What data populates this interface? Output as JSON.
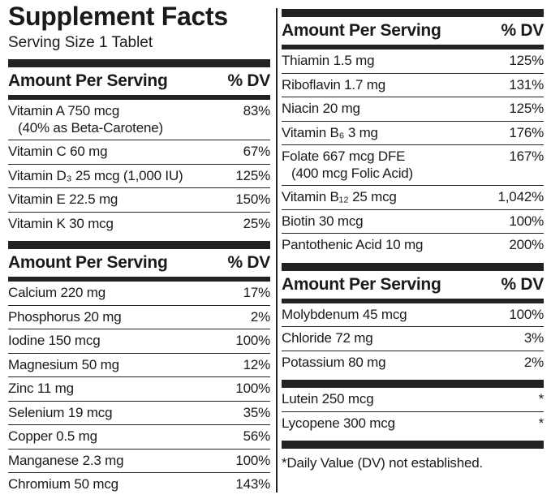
{
  "title": "Supplement Facts",
  "serving_size": "Serving Size 1 Tablet",
  "left_sections": [
    {
      "header": {
        "amount": "Amount Per Serving",
        "dv": "% DV"
      },
      "rows": [
        {
          "name": "Vitamin A 750 mcg",
          "note": "(40% as Beta-Carotene)",
          "dv": "83%"
        },
        {
          "name": "Vitamin C 60 mg",
          "dv": "67%"
        },
        {
          "name": "Vitamin D₃ 25 mcg (1,000 IU)",
          "dv": "125%"
        },
        {
          "name": "Vitamin E 22.5 mg",
          "dv": "150%"
        },
        {
          "name": "Vitamin K 30 mcg",
          "dv": "25%"
        }
      ]
    },
    {
      "header": {
        "amount": "Amount Per Serving",
        "dv": "% DV"
      },
      "rows": [
        {
          "name": "Calcium 220 mg",
          "dv": "17%"
        },
        {
          "name": "Phosphorus 20 mg",
          "dv": "2%"
        },
        {
          "name": "Iodine 150 mcg",
          "dv": "100%"
        },
        {
          "name": "Magnesium 50 mg",
          "dv": "12%"
        },
        {
          "name": "Zinc 11 mg",
          "dv": "100%"
        },
        {
          "name": "Selenium 19 mcg",
          "dv": "35%"
        },
        {
          "name": "Copper 0.5 mg",
          "dv": "56%"
        },
        {
          "name": "Manganese 2.3 mg",
          "dv": "100%"
        },
        {
          "name": "Chromium 50 mcg",
          "dv": "143%"
        }
      ]
    }
  ],
  "right_sections": [
    {
      "header": {
        "amount": "Amount Per Serving",
        "dv": "% DV"
      },
      "rows": [
        {
          "name": "Thiamin 1.5 mg",
          "dv": "125%"
        },
        {
          "name": "Riboflavin 1.7 mg",
          "dv": "131%"
        },
        {
          "name": "Niacin 20 mg",
          "dv": "125%"
        },
        {
          "name": "Vitamin B₆ 3 mg",
          "dv": "176%"
        },
        {
          "name": "Folate 667 mcg DFE",
          "note": "(400 mcg Folic Acid)",
          "dv": "167%"
        },
        {
          "name": "Vitamin B₁₂ 25 mcg",
          "dv": "1,042%"
        },
        {
          "name": "Biotin 30 mcg",
          "dv": "100%"
        },
        {
          "name": "Pantothenic Acid 10 mg",
          "dv": "200%"
        }
      ]
    },
    {
      "header": {
        "amount": "Amount Per Serving",
        "dv": "% DV"
      },
      "rows": [
        {
          "name": "Molybdenum 45 mcg",
          "dv": "100%"
        },
        {
          "name": "Chloride 72 mg",
          "dv": "3%"
        },
        {
          "name": "Potassium 80 mg",
          "dv": "2%"
        }
      ]
    },
    {
      "rows": [
        {
          "name": "Lutein 250 mcg",
          "dv": "*"
        },
        {
          "name": "Lycopene 300 mcg",
          "dv": "*"
        }
      ]
    }
  ],
  "footnote": "*Daily Value (DV) not established."
}
